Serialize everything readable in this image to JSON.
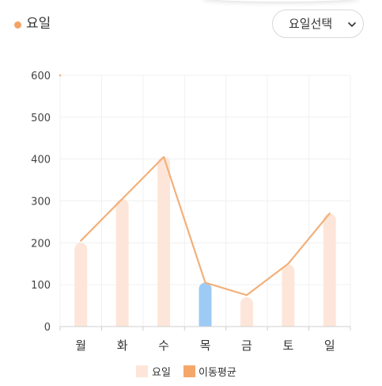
{
  "header": {
    "title": "요일",
    "select_label": "요일선택",
    "dot_color": "#f2a365"
  },
  "chart_data": {
    "type": "bar",
    "categories": [
      "월",
      "화",
      "수",
      "목",
      "금",
      "토",
      "일"
    ],
    "series": [
      {
        "name": "요일",
        "type": "bar",
        "values": [
          200,
          305,
          405,
          105,
          70,
          148,
          270
        ]
      },
      {
        "name": "이동평균",
        "type": "line",
        "values": [
          205,
          305,
          405,
          105,
          75,
          150,
          270
        ]
      }
    ],
    "highlight_index": 3,
    "yticks": [
      0,
      100,
      200,
      300,
      400,
      500,
      600
    ],
    "ylim": [
      0,
      600
    ],
    "grid": true,
    "legend_position": "bottom",
    "colors": {
      "bar": "#fde6d9",
      "bar_highlight": "#9dcbf5",
      "line": "#f2b07a",
      "legend_line": "#f5a76a"
    }
  }
}
